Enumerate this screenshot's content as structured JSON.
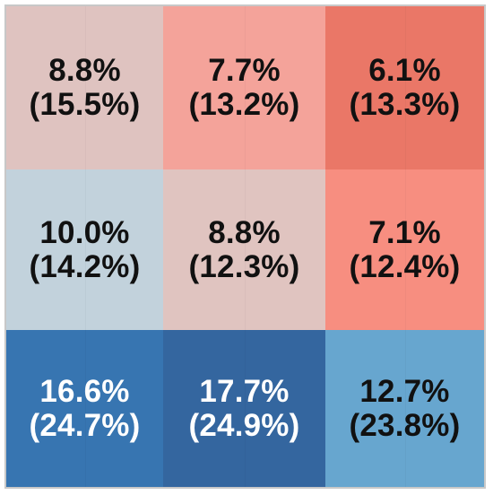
{
  "chart_data": {
    "type": "heatmap",
    "title": "",
    "xlabel": "",
    "ylabel": "",
    "legend": "none",
    "grid": true,
    "rows": 3,
    "cols": 3,
    "cells": [
      [
        {
          "value": "8.8%",
          "sub": "(15.5%)",
          "color": "#dfc3c0",
          "text_color": "#111111"
        },
        {
          "value": "7.7%",
          "sub": "(13.2%)",
          "color": "#f4a39a",
          "text_color": "#111111"
        },
        {
          "value": "6.1%",
          "sub": "(13.3%)",
          "color": "#ea7767",
          "text_color": "#111111"
        }
      ],
      [
        {
          "value": "10.0%",
          "sub": "(14.2%)",
          "color": "#c2d2dc",
          "text_color": "#111111"
        },
        {
          "value": "8.8%",
          "sub": "(12.3%)",
          "color": "#e0c4c0",
          "text_color": "#111111"
        },
        {
          "value": "7.1%",
          "sub": "(12.4%)",
          "color": "#f78e80",
          "text_color": "#111111"
        }
      ],
      [
        {
          "value": "16.6%",
          "sub": "(24.7%)",
          "color": "#3775b1",
          "text_color": "#ffffff"
        },
        {
          "value": "17.7%",
          "sub": "(24.9%)",
          "color": "#34669f",
          "text_color": "#ffffff"
        },
        {
          "value": "12.7%",
          "sub": "(23.8%)",
          "color": "#67a6cf",
          "text_color": "#111111"
        }
      ]
    ]
  }
}
